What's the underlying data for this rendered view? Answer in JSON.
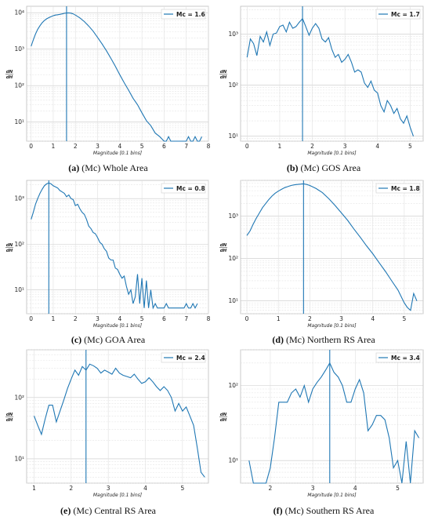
{
  "figure": {
    "captions": [
      {
        "letter": "(a)",
        "mc": "(Mc)",
        "rest": " Whole Area"
      },
      {
        "letter": "(b)",
        "mc": "(Mc)",
        "rest": " GOS Area"
      },
      {
        "letter": "(c)",
        "mc": "(Mc)",
        "rest": " GOA Area"
      },
      {
        "letter": "(d)",
        "mc": "(Mc)",
        "rest": " Northern RS Area"
      },
      {
        "letter": "(e)",
        "mc": "(Mc)",
        "rest": " Central RS Area"
      },
      {
        "letter": "(f)",
        "mc": "(Mc)",
        "rest": " Southern RS Area"
      }
    ]
  },
  "chart_data": [
    {
      "type": "line",
      "panel": "a",
      "color": "#1f77b4",
      "xlabel": "Magnitude [0.1 bins]",
      "ylabel": "dN/dH",
      "log_y": true,
      "grid": true,
      "legend": "Mc = 1.6",
      "legend_position": "top-right",
      "mc_line": 1.6,
      "xlim": [
        -0.2,
        8.0
      ],
      "ylim": [
        3,
        15000
      ],
      "xticks": [
        0,
        1,
        2,
        3,
        4,
        5,
        6,
        7,
        8
      ],
      "yticks": [
        10,
        100,
        1000,
        10000
      ],
      "ytick_labels": [
        "10¹",
        "10²",
        "10³",
        "10⁴"
      ],
      "x": [
        0,
        0.1,
        0.2,
        0.3,
        0.4,
        0.5,
        0.6,
        0.7,
        0.8,
        0.9,
        1.0,
        1.1,
        1.2,
        1.3,
        1.4,
        1.5,
        1.6,
        1.7,
        1.8,
        1.9,
        2.0,
        2.2,
        2.4,
        2.6,
        2.8,
        3.0,
        3.2,
        3.4,
        3.6,
        3.8,
        4.0,
        4.2,
        4.4,
        4.6,
        4.8,
        5.0,
        5.2,
        5.4,
        5.6,
        5.8,
        6.0,
        6.1,
        6.2,
        6.3,
        7.0,
        7.1,
        7.2,
        7.3,
        7.4,
        7.5,
        7.6,
        7.7
      ],
      "y": [
        1200,
        1800,
        2600,
        3500,
        4400,
        5300,
        6100,
        6800,
        7300,
        7800,
        8300,
        8600,
        8800,
        9000,
        9300,
        9600,
        9800,
        9900,
        9700,
        9300,
        8600,
        7200,
        5700,
        4300,
        3100,
        2100,
        1400,
        900,
        560,
        340,
        200,
        120,
        75,
        45,
        30,
        18,
        11,
        8,
        5,
        4,
        3,
        3,
        4,
        3,
        3,
        4,
        3,
        3,
        4,
        3,
        3,
        4
      ]
    },
    {
      "type": "line",
      "panel": "b",
      "color": "#1f77b4",
      "xlabel": "Magnitude [0.1 bins]",
      "ylabel": "dN/dH",
      "log_y": true,
      "grid": true,
      "legend": "Mc = 1.7",
      "legend_position": "top-right",
      "mc_line": 1.7,
      "xlim": [
        -0.2,
        5.4
      ],
      "ylim": [
        8,
        3500
      ],
      "xticks": [
        0,
        1,
        2,
        3,
        4,
        5
      ],
      "yticks": [
        10,
        100,
        1000
      ],
      "ytick_labels": [
        "10¹",
        "10²",
        "10³"
      ],
      "x": [
        0,
        0.1,
        0.2,
        0.3,
        0.4,
        0.5,
        0.6,
        0.7,
        0.8,
        0.9,
        1.0,
        1.1,
        1.2,
        1.3,
        1.4,
        1.5,
        1.6,
        1.7,
        1.8,
        1.9,
        2.0,
        2.1,
        2.2,
        2.3,
        2.4,
        2.5,
        2.6,
        2.7,
        2.8,
        2.9,
        3.0,
        3.1,
        3.2,
        3.3,
        3.4,
        3.5,
        3.6,
        3.7,
        3.8,
        3.9,
        4.0,
        4.1,
        4.2,
        4.3,
        4.4,
        4.5,
        4.6,
        4.7,
        4.8,
        4.9,
        5.0,
        5.1
      ],
      "y": [
        350,
        800,
        650,
        380,
        900,
        700,
        1100,
        600,
        1000,
        1050,
        1400,
        1500,
        1100,
        1700,
        1300,
        1400,
        1700,
        2000,
        1400,
        950,
        1300,
        1600,
        1300,
        800,
        700,
        850,
        500,
        350,
        400,
        280,
        320,
        400,
        280,
        180,
        200,
        180,
        110,
        90,
        120,
        80,
        70,
        40,
        30,
        50,
        40,
        28,
        35,
        22,
        18,
        25,
        15,
        10
      ]
    },
    {
      "type": "line",
      "panel": "c",
      "color": "#1f77b4",
      "xlabel": "Magnitude [0.1 bins]",
      "ylabel": "dN/dH",
      "log_y": true,
      "grid": true,
      "legend": "Mc = 0.8",
      "legend_position": "top-right",
      "mc_line": 0.8,
      "xlim": [
        -0.2,
        8.0
      ],
      "ylim": [
        3,
        2500
      ],
      "xticks": [
        0,
        1,
        2,
        3,
        4,
        5,
        6,
        7,
        8
      ],
      "yticks": [
        10,
        100,
        1000
      ],
      "ytick_labels": [
        "10¹",
        "10²",
        "10³"
      ],
      "x": [
        0,
        0.1,
        0.2,
        0.3,
        0.4,
        0.5,
        0.6,
        0.7,
        0.8,
        0.9,
        1.0,
        1.1,
        1.2,
        1.3,
        1.4,
        1.5,
        1.6,
        1.7,
        1.8,
        1.9,
        2.0,
        2.1,
        2.2,
        2.3,
        2.4,
        2.5,
        2.6,
        2.7,
        2.8,
        2.9,
        3.0,
        3.1,
        3.2,
        3.3,
        3.4,
        3.5,
        3.6,
        3.7,
        3.8,
        3.9,
        4.0,
        4.1,
        4.2,
        4.3,
        4.4,
        4.5,
        4.6,
        4.7,
        4.8,
        4.9,
        5.0,
        5.1,
        5.2,
        5.3,
        5.4,
        5.5,
        5.6,
        5.7,
        6.0,
        6.1,
        6.2,
        6.3,
        6.9,
        7.0,
        7.1,
        7.2,
        7.3,
        7.4,
        7.5
      ],
      "y": [
        350,
        500,
        750,
        1000,
        1300,
        1600,
        1900,
        2100,
        2200,
        2100,
        1900,
        1800,
        1700,
        1500,
        1400,
        1300,
        1100,
        1200,
        1000,
        950,
        700,
        750,
        600,
        500,
        450,
        350,
        250,
        220,
        180,
        170,
        140,
        110,
        100,
        80,
        70,
        50,
        45,
        45,
        30,
        28,
        22,
        18,
        20,
        12,
        8,
        10,
        5,
        7,
        22,
        5,
        18,
        4,
        16,
        4,
        10,
        4,
        5,
        4,
        4,
        5,
        4,
        4,
        4,
        5,
        4,
        4,
        5,
        4,
        5
      ]
    },
    {
      "type": "line",
      "panel": "d",
      "color": "#1f77b4",
      "xlabel": "Magnitude [0.1 bins]",
      "ylabel": "dN/dH",
      "log_y": true,
      "grid": true,
      "legend": "Mc = 1.8",
      "legend_position": "top-right",
      "mc_line": 1.8,
      "xlim": [
        -0.2,
        5.6
      ],
      "ylim": [
        5,
        7000
      ],
      "xticks": [
        0,
        1,
        2,
        3,
        4,
        5
      ],
      "yticks": [
        10,
        100,
        1000
      ],
      "ytick_labels": [
        "10¹",
        "10²",
        "10³"
      ],
      "x": [
        0,
        0.1,
        0.2,
        0.3,
        0.4,
        0.5,
        0.6,
        0.7,
        0.8,
        0.9,
        1.0,
        1.1,
        1.2,
        1.3,
        1.4,
        1.5,
        1.6,
        1.7,
        1.8,
        1.9,
        2.0,
        2.2,
        2.4,
        2.6,
        2.8,
        3.0,
        3.2,
        3.4,
        3.6,
        3.8,
        4.0,
        4.2,
        4.4,
        4.6,
        4.8,
        5.0,
        5.1,
        5.2,
        5.3,
        5.4
      ],
      "y": [
        350,
        450,
        650,
        900,
        1200,
        1600,
        2000,
        2500,
        3000,
        3500,
        3900,
        4300,
        4700,
        5000,
        5300,
        5500,
        5600,
        5700,
        5800,
        5600,
        5300,
        4500,
        3600,
        2600,
        1800,
        1200,
        800,
        500,
        320,
        200,
        130,
        80,
        50,
        30,
        18,
        9,
        7,
        6,
        15,
        10
      ]
    },
    {
      "type": "line",
      "panel": "e",
      "color": "#1f77b4",
      "xlabel": "Magnitude [0.1 bins]",
      "ylabel": "dN/dH",
      "log_y": true,
      "grid": true,
      "legend": "Mc = 2.4",
      "legend_position": "top-right",
      "mc_line": 2.4,
      "xlim": [
        0.8,
        5.7
      ],
      "ylim": [
        4,
        600
      ],
      "xticks": [
        1,
        2,
        3,
        4,
        5
      ],
      "yticks": [
        10,
        100
      ],
      "ytick_labels": [
        "10¹",
        "10²"
      ],
      "x": [
        1.0,
        1.1,
        1.2,
        1.3,
        1.4,
        1.5,
        1.6,
        1.7,
        1.8,
        1.9,
        2.0,
        2.1,
        2.2,
        2.3,
        2.4,
        2.5,
        2.6,
        2.7,
        2.8,
        2.9,
        3.0,
        3.1,
        3.2,
        3.3,
        3.4,
        3.5,
        3.6,
        3.7,
        3.8,
        3.9,
        4.0,
        4.1,
        4.2,
        4.3,
        4.4,
        4.5,
        4.6,
        4.7,
        4.8,
        4.9,
        5.0,
        5.1,
        5.2,
        5.3,
        5.4,
        5.5,
        5.6
      ],
      "y": [
        50,
        35,
        25,
        45,
        75,
        75,
        40,
        60,
        90,
        140,
        200,
        280,
        230,
        320,
        280,
        350,
        330,
        300,
        250,
        280,
        260,
        240,
        300,
        250,
        230,
        220,
        210,
        240,
        200,
        170,
        180,
        210,
        180,
        150,
        130,
        150,
        130,
        100,
        60,
        80,
        60,
        70,
        50,
        35,
        15,
        6,
        5
      ]
    },
    {
      "type": "line",
      "panel": "f",
      "color": "#1f77b4",
      "xlabel": "Magnitude [0.1 bins]",
      "ylabel": "dN/dH",
      "log_y": true,
      "grid": true,
      "legend": "Mc = 3.4",
      "legend_position": "top-right",
      "mc_line": 3.4,
      "xlim": [
        1.3,
        5.6
      ],
      "ylim": [
        5,
        300
      ],
      "xticks": [
        2,
        3,
        4,
        5
      ],
      "yticks": [
        10,
        100
      ],
      "ytick_labels": [
        "10¹",
        "10²"
      ],
      "x": [
        1.5,
        1.6,
        1.7,
        1.8,
        1.9,
        2.0,
        2.1,
        2.2,
        2.3,
        2.4,
        2.5,
        2.6,
        2.7,
        2.8,
        2.9,
        3.0,
        3.1,
        3.2,
        3.3,
        3.4,
        3.5,
        3.6,
        3.7,
        3.8,
        3.9,
        4.0,
        4.1,
        4.2,
        4.3,
        4.4,
        4.5,
        4.6,
        4.7,
        4.8,
        4.9,
        5.0,
        5.1,
        5.2,
        5.3,
        5.4,
        5.5
      ],
      "y": [
        10,
        5,
        5,
        5,
        5,
        8,
        20,
        60,
        60,
        60,
        80,
        90,
        70,
        100,
        60,
        90,
        110,
        130,
        160,
        200,
        150,
        130,
        100,
        60,
        60,
        90,
        120,
        80,
        25,
        30,
        40,
        40,
        35,
        20,
        8,
        10,
        5,
        18,
        5,
        25,
        20
      ]
    }
  ]
}
